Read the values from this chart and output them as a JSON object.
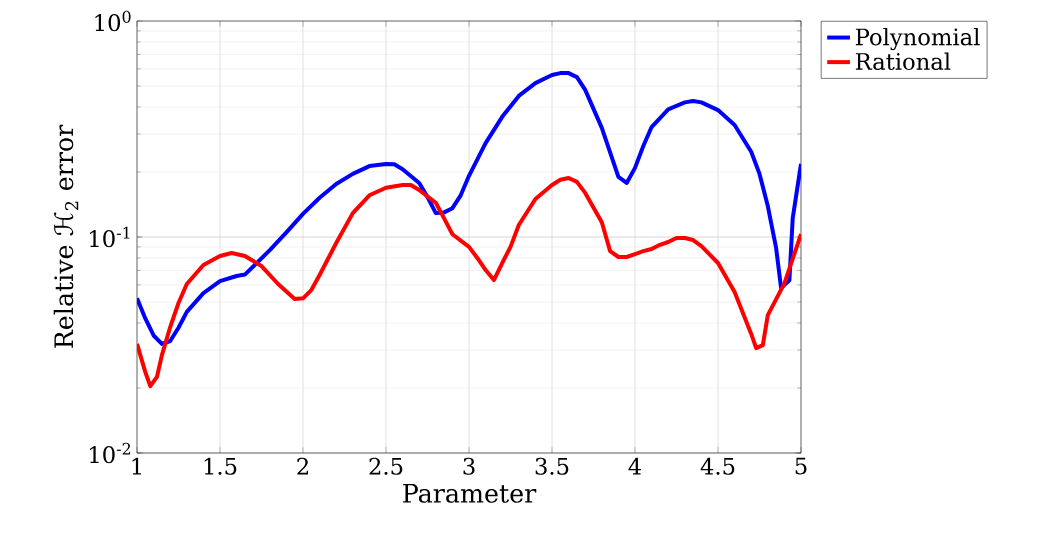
{
  "chart_data": {
    "type": "line",
    "xlabel": "Parameter",
    "ylabel": "Relative ℋ$_{2}$ error",
    "xlim": [
      1,
      5
    ],
    "ylim": [
      0.01,
      1
    ],
    "xticks": [
      1,
      1.5,
      2,
      2.5,
      3,
      3.5,
      4,
      4.5,
      5
    ],
    "yticks": [
      {
        "value": 0.01,
        "label": "10$^{-2}$"
      },
      {
        "value": 0.1,
        "label": "10$^{-1}$"
      },
      {
        "value": 1,
        "label": "10$^{0}$"
      }
    ],
    "log": "y",
    "grid": true,
    "legend": "top right",
    "marker": "none",
    "line_style": "solid",
    "series": [
      {
        "name": "Polynomial",
        "color": "#0000ff",
        "x": [
          1.0,
          1.05,
          1.1,
          1.15,
          1.2,
          1.25,
          1.3,
          1.4,
          1.5,
          1.6,
          1.65,
          1.7,
          1.8,
          1.9,
          2.0,
          2.1,
          2.2,
          2.3,
          2.4,
          2.5,
          2.55,
          2.6,
          2.7,
          2.75,
          2.8,
          2.85,
          2.9,
          2.95,
          3.0,
          3.1,
          3.2,
          3.3,
          3.4,
          3.5,
          3.55,
          3.6,
          3.65,
          3.7,
          3.8,
          3.9,
          3.95,
          4.0,
          4.05,
          4.1,
          4.2,
          4.3,
          4.35,
          4.4,
          4.5,
          4.6,
          4.7,
          4.75,
          4.8,
          4.85,
          4.88,
          4.93,
          4.95,
          5.0
        ],
        "values": [
          0.052,
          0.042,
          0.035,
          0.032,
          0.033,
          0.038,
          0.045,
          0.055,
          0.0625,
          0.066,
          0.067,
          0.073,
          0.087,
          0.105,
          0.128,
          0.152,
          0.176,
          0.196,
          0.213,
          0.218,
          0.217,
          0.206,
          0.178,
          0.153,
          0.129,
          0.13,
          0.136,
          0.156,
          0.192,
          0.272,
          0.36,
          0.45,
          0.516,
          0.562,
          0.574,
          0.574,
          0.55,
          0.48,
          0.32,
          0.19,
          0.178,
          0.209,
          0.264,
          0.323,
          0.39,
          0.42,
          0.426,
          0.42,
          0.387,
          0.33,
          0.248,
          0.196,
          0.139,
          0.089,
          0.058,
          0.063,
          0.122,
          0.218
        ]
      },
      {
        "name": "Rational",
        "color": "#ff0000",
        "x": [
          1.0,
          1.05,
          1.08,
          1.12,
          1.15,
          1.2,
          1.25,
          1.3,
          1.4,
          1.5,
          1.57,
          1.65,
          1.75,
          1.85,
          1.95,
          2.0,
          2.05,
          2.1,
          2.2,
          2.3,
          2.4,
          2.5,
          2.6,
          2.65,
          2.7,
          2.8,
          2.85,
          2.9,
          3.0,
          3.05,
          3.1,
          3.15,
          3.2,
          3.25,
          3.3,
          3.4,
          3.5,
          3.55,
          3.6,
          3.65,
          3.7,
          3.8,
          3.85,
          3.9,
          3.95,
          4.0,
          4.05,
          4.1,
          4.15,
          4.2,
          4.25,
          4.3,
          4.35,
          4.4,
          4.5,
          4.6,
          4.7,
          4.73,
          4.77,
          4.8,
          4.9,
          5.0
        ],
        "values": [
          0.032,
          0.0237,
          0.0204,
          0.0225,
          0.0284,
          0.0383,
          0.0495,
          0.0606,
          0.0742,
          0.0817,
          0.0843,
          0.0817,
          0.0734,
          0.0606,
          0.0516,
          0.052,
          0.0568,
          0.0667,
          0.0938,
          0.129,
          0.156,
          0.169,
          0.174,
          0.174,
          0.165,
          0.144,
          0.122,
          0.103,
          0.09,
          0.08,
          0.0703,
          0.0632,
          0.0758,
          0.09,
          0.1137,
          0.15,
          0.174,
          0.184,
          0.1876,
          0.18,
          0.16,
          0.117,
          0.086,
          0.0808,
          0.0808,
          0.0834,
          0.086,
          0.088,
          0.092,
          0.0948,
          0.099,
          0.099,
          0.0968,
          0.0908,
          0.0758,
          0.0556,
          0.0356,
          0.0306,
          0.0316,
          0.0435,
          0.061,
          0.103
        ]
      }
    ]
  }
}
